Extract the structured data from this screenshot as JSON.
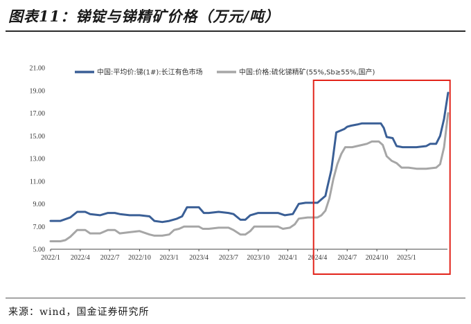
{
  "header": {
    "title": "图表11：锑锭与锑精矿价格（万元/吨）"
  },
  "footer": {
    "source": "来源：wind，国金证券研究所"
  },
  "chart_data": {
    "type": "line",
    "title": "图表11：锑锭与锑精矿价格（万元/吨）",
    "x_tick_labels": [
      "2022/1",
      "2022/4",
      "2022/7",
      "2022/10",
      "2023/1",
      "2023/4",
      "2023/7",
      "2023/10",
      "2024/1",
      "2024/4",
      "2024/7",
      "2024/10",
      "2025/1"
    ],
    "y_tick_labels": [
      "5.00",
      "7.00",
      "9.00",
      "11.00",
      "13.00",
      "15.00",
      "17.00",
      "19.00",
      "21.00"
    ],
    "ylim": [
      5,
      21
    ],
    "xlim_month_index": [
      0,
      40
    ],
    "legend_position": "top",
    "highlight_box": {
      "from_month_index": 26.6,
      "to_month_index": 40.4,
      "color": "#e2231a"
    },
    "series": [
      {
        "name": "中国:平均价:锑(1#):长江有色市场",
        "color": "#3a5f96",
        "points": [
          [
            0,
            7.5
          ],
          [
            1,
            7.5
          ],
          [
            2,
            7.8
          ],
          [
            2.7,
            8.3
          ],
          [
            3.5,
            8.3
          ],
          [
            4,
            8.1
          ],
          [
            5,
            8.0
          ],
          [
            5.8,
            8.2
          ],
          [
            6.5,
            8.2
          ],
          [
            7,
            8.1
          ],
          [
            8,
            8.0
          ],
          [
            9,
            8.0
          ],
          [
            10,
            7.9
          ],
          [
            10.5,
            7.5
          ],
          [
            11.3,
            7.4
          ],
          [
            12,
            7.5
          ],
          [
            12.8,
            7.7
          ],
          [
            13.3,
            7.9
          ],
          [
            13.8,
            8.7
          ],
          [
            15,
            8.7
          ],
          [
            15.5,
            8.2
          ],
          [
            16,
            8.2
          ],
          [
            17,
            8.3
          ],
          [
            18,
            8.2
          ],
          [
            18.5,
            8.1
          ],
          [
            19.2,
            7.6
          ],
          [
            19.7,
            7.6
          ],
          [
            20.2,
            8.0
          ],
          [
            21,
            8.2
          ],
          [
            22,
            8.2
          ],
          [
            23,
            8.2
          ],
          [
            23.7,
            8.0
          ],
          [
            24.5,
            8.1
          ],
          [
            25.1,
            9.0
          ],
          [
            25.8,
            9.1
          ],
          [
            26.5,
            9.1
          ],
          [
            27,
            9.1
          ],
          [
            27.4,
            9.4
          ],
          [
            27.8,
            9.7
          ],
          [
            28,
            10.5
          ],
          [
            28.4,
            12.0
          ],
          [
            28.9,
            15.3
          ],
          [
            29.7,
            15.6
          ],
          [
            30,
            15.8
          ],
          [
            30.4,
            15.9
          ],
          [
            31,
            16.0
          ],
          [
            31.5,
            16.1
          ],
          [
            32,
            16.1
          ],
          [
            32.8,
            16.1
          ],
          [
            33.4,
            16.1
          ],
          [
            33.7,
            15.7
          ],
          [
            34,
            14.9
          ],
          [
            34.6,
            14.8
          ],
          [
            35,
            14.1
          ],
          [
            35.6,
            14.0
          ],
          [
            36.2,
            14.0
          ],
          [
            37,
            14.0
          ],
          [
            38,
            14.1
          ],
          [
            38.4,
            14.3
          ],
          [
            39,
            14.3
          ],
          [
            39.4,
            15.0
          ],
          [
            39.8,
            16.5
          ],
          [
            40.2,
            18.8
          ]
        ]
      },
      {
        "name": "中国:价格:硫化锑精矿(55%,Sb≥55%,国产)",
        "color": "#a6a6a6",
        "points": [
          [
            0,
            5.7
          ],
          [
            1,
            5.7
          ],
          [
            1.5,
            5.8
          ],
          [
            2,
            6.1
          ],
          [
            2.7,
            6.7
          ],
          [
            3.5,
            6.7
          ],
          [
            4,
            6.4
          ],
          [
            5,
            6.4
          ],
          [
            5.8,
            6.7
          ],
          [
            6.5,
            6.7
          ],
          [
            7,
            6.4
          ],
          [
            8,
            6.5
          ],
          [
            9,
            6.6
          ],
          [
            10,
            6.3
          ],
          [
            10.5,
            6.2
          ],
          [
            11.3,
            6.2
          ],
          [
            12,
            6.3
          ],
          [
            12.5,
            6.7
          ],
          [
            13,
            6.8
          ],
          [
            13.5,
            7.0
          ],
          [
            15,
            7.0
          ],
          [
            15.4,
            6.8
          ],
          [
            16,
            6.8
          ],
          [
            17,
            6.9
          ],
          [
            18,
            6.9
          ],
          [
            18.5,
            6.7
          ],
          [
            19.2,
            6.3
          ],
          [
            19.7,
            6.3
          ],
          [
            20.2,
            6.6
          ],
          [
            20.6,
            7.0
          ],
          [
            21,
            7.0
          ],
          [
            22,
            7.0
          ],
          [
            23,
            7.0
          ],
          [
            23.5,
            6.8
          ],
          [
            24.2,
            6.9
          ],
          [
            24.7,
            7.2
          ],
          [
            25.1,
            7.7
          ],
          [
            26,
            7.8
          ],
          [
            27,
            7.8
          ],
          [
            27.4,
            8.0
          ],
          [
            27.8,
            8.4
          ],
          [
            28.2,
            9.5
          ],
          [
            28.6,
            11.2
          ],
          [
            29,
            12.5
          ],
          [
            29.4,
            13.4
          ],
          [
            29.8,
            14.0
          ],
          [
            30.5,
            14.0
          ],
          [
            31,
            14.1
          ],
          [
            31.5,
            14.2
          ],
          [
            32,
            14.3
          ],
          [
            32.5,
            14.5
          ],
          [
            33.2,
            14.5
          ],
          [
            33.6,
            14.2
          ],
          [
            34,
            13.2
          ],
          [
            34.5,
            12.8
          ],
          [
            35,
            12.6
          ],
          [
            35.5,
            12.2
          ],
          [
            36.2,
            12.2
          ],
          [
            37,
            12.1
          ],
          [
            38,
            12.1
          ],
          [
            39,
            12.2
          ],
          [
            39.4,
            12.5
          ],
          [
            39.8,
            14.0
          ],
          [
            40.2,
            17.0
          ]
        ]
      }
    ]
  }
}
